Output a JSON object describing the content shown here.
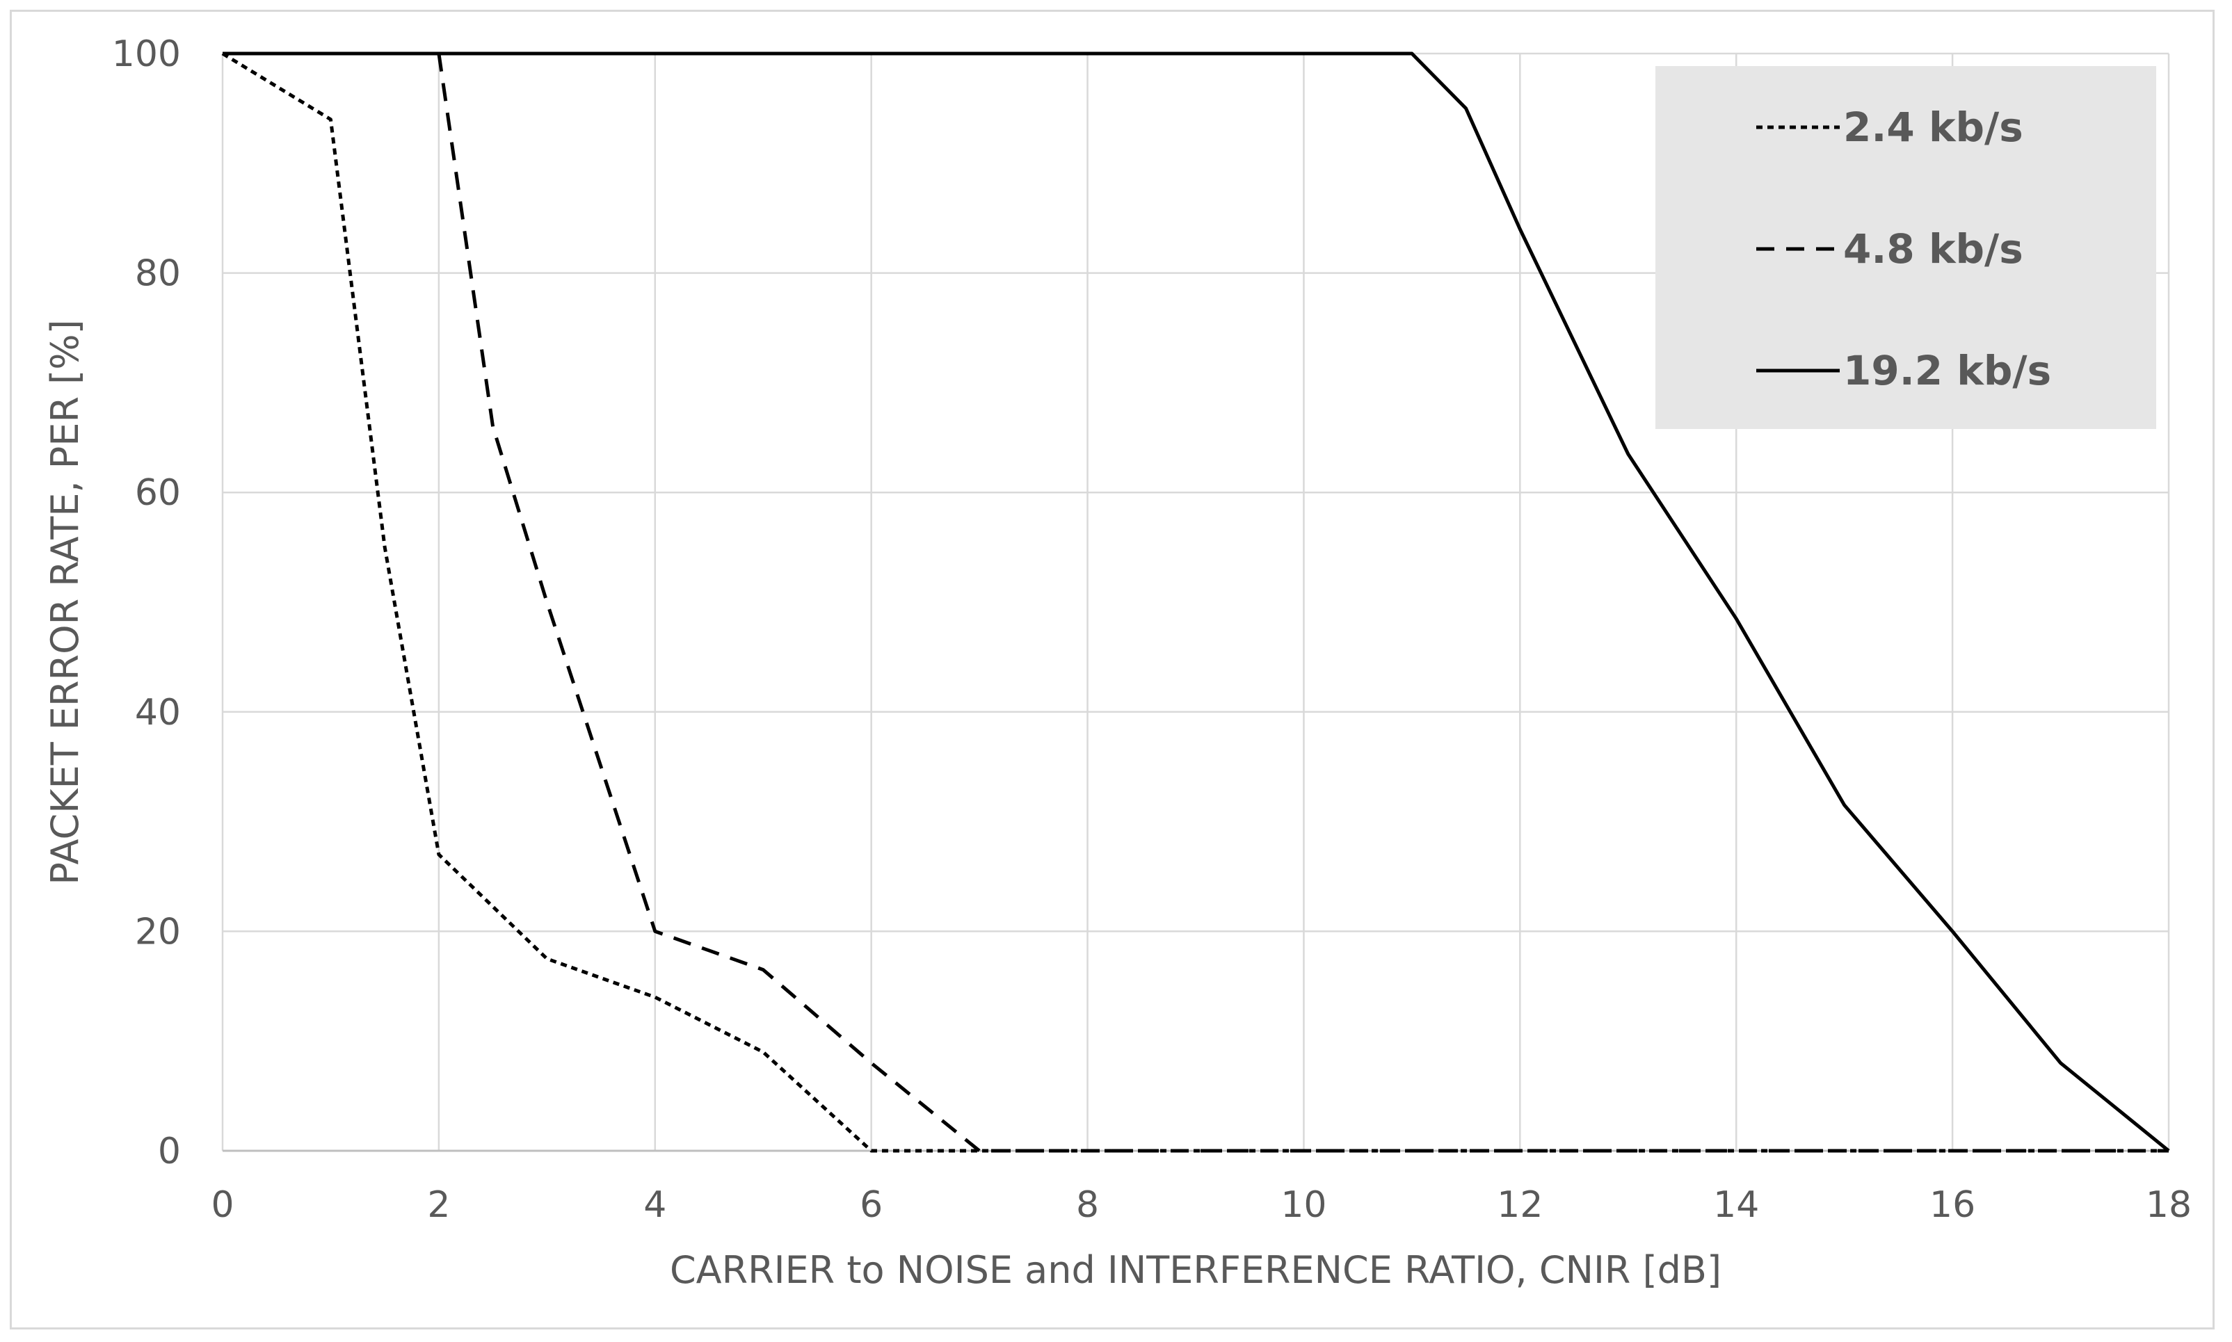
{
  "chart_data": {
    "type": "line",
    "title": "",
    "xlabel": "CARRIER to  NOISE and INTERFERENCE RATIO, CNIR [dB]",
    "ylabel": "PACKET ERROR RATE, PER [%]",
    "xlim": [
      0,
      18
    ],
    "ylim": [
      0,
      100
    ],
    "xticks": [
      0,
      2,
      4,
      6,
      8,
      10,
      12,
      14,
      16,
      18
    ],
    "yticks": [
      0,
      20,
      40,
      60,
      80,
      100
    ],
    "grid": true,
    "legend_position": "top-right",
    "series": [
      {
        "name": "2.4 kb/s",
        "line_style": "dotted",
        "color": "#000000",
        "points": [
          [
            0,
            100
          ],
          [
            1,
            94
          ],
          [
            1.5,
            55
          ],
          [
            2,
            27
          ],
          [
            3,
            17.5
          ],
          [
            4,
            14
          ],
          [
            5,
            9
          ],
          [
            6,
            0
          ],
          [
            7,
            0
          ],
          [
            8,
            0
          ],
          [
            9,
            0
          ],
          [
            10,
            0
          ],
          [
            11,
            0
          ],
          [
            12,
            0
          ],
          [
            13,
            0
          ],
          [
            14,
            0
          ],
          [
            15,
            0
          ],
          [
            16,
            0
          ],
          [
            17,
            0
          ],
          [
            18,
            0
          ]
        ]
      },
      {
        "name": "4.8 kb/s",
        "line_style": "dashed",
        "color": "#000000",
        "points": [
          [
            2,
            100
          ],
          [
            2.5,
            66
          ],
          [
            3,
            50
          ],
          [
            4,
            20
          ],
          [
            5,
            16.5
          ],
          [
            6,
            8
          ],
          [
            7,
            0
          ],
          [
            8,
            0
          ],
          [
            9,
            0
          ],
          [
            10,
            0
          ],
          [
            11,
            0
          ],
          [
            12,
            0
          ],
          [
            13,
            0
          ],
          [
            14,
            0
          ],
          [
            15,
            0
          ],
          [
            16,
            0
          ],
          [
            17,
            0
          ],
          [
            18,
            0
          ]
        ]
      },
      {
        "name": "19.2 kb/s",
        "line_style": "solid",
        "color": "#000000",
        "points": [
          [
            0,
            100
          ],
          [
            11,
            100
          ],
          [
            11.5,
            95
          ],
          [
            12,
            84
          ],
          [
            13,
            63.5
          ],
          [
            14,
            48.5
          ],
          [
            15,
            31.5
          ],
          [
            16,
            20
          ],
          [
            17,
            8
          ],
          [
            18,
            0
          ]
        ]
      }
    ]
  },
  "colors": {
    "grid": "#d9d9d9",
    "axis": "#bfbfbf",
    "text": "#595959",
    "legend_bg": "#e6e6e6"
  }
}
